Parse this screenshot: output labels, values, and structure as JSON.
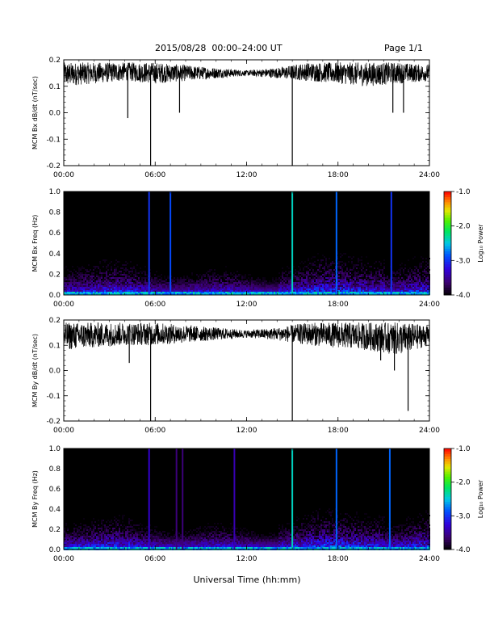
{
  "header": {
    "title": "2015/08/28  00:00–24:00 UT",
    "page": "Page 1/1"
  },
  "footer": {
    "xlabel": "Universal Time (hh:mm)"
  },
  "colorbar": {
    "label": "Log₁₀ Power",
    "ticks": [
      "-1.0",
      "-2.0",
      "-3.0",
      "-4.0"
    ],
    "range": [
      -4.0,
      -1.0
    ]
  },
  "chart_data": [
    {
      "type": "line",
      "ylabel": "MCM Bx dB/dt (nT/sec)",
      "ylim": [
        -0.2,
        0.2
      ],
      "yticks": [
        "0.2",
        "0.1",
        "0.0",
        "-0.1",
        "-0.2"
      ],
      "xticks": [
        "00:00",
        "06:00",
        "12:00",
        "18:00",
        "24:00"
      ],
      "xlim_hours": [
        0,
        24
      ],
      "series": [
        {
          "envelope_hours": [
            0,
            2,
            4,
            6,
            8,
            10,
            12,
            14,
            16,
            18,
            20,
            22,
            24
          ],
          "upper": [
            0.19,
            0.19,
            0.19,
            0.19,
            0.18,
            0.17,
            0.16,
            0.17,
            0.19,
            0.19,
            0.19,
            0.19,
            0.18
          ],
          "lower": [
            0.1,
            0.11,
            0.12,
            0.11,
            0.12,
            0.13,
            0.14,
            0.13,
            0.12,
            0.11,
            0.1,
            0.11,
            0.12
          ],
          "spikes": [
            {
              "hour": 5.7,
              "value": -0.2
            },
            {
              "hour": 4.2,
              "value": -0.02
            },
            {
              "hour": 7.6,
              "value": 0.0
            },
            {
              "hour": 15.0,
              "value": -0.2
            },
            {
              "hour": 21.6,
              "value": 0.0
            },
            {
              "hour": 22.3,
              "value": 0.0
            }
          ]
        }
      ]
    },
    {
      "type": "heatmap",
      "ylabel": "MCM Bx Freq (Hz)",
      "ylim": [
        0.0,
        1.0
      ],
      "yticks": [
        "1.0",
        "0.8",
        "0.6",
        "0.4",
        "0.2",
        "0.0"
      ],
      "xticks": [
        "00:00",
        "06:00",
        "12:00",
        "18:00",
        "24:00"
      ],
      "xlim_hours": [
        0,
        24
      ],
      "zlim": [
        -4.0,
        -1.0
      ],
      "vertical_lines": [
        {
          "hour": 5.6,
          "log_power": -3.0
        },
        {
          "hour": 7.0,
          "log_power": -2.9
        },
        {
          "hour": 15.0,
          "log_power": -2.4
        },
        {
          "hour": 17.9,
          "log_power": -2.8
        },
        {
          "hour": 21.5,
          "log_power": -3.0
        }
      ]
    },
    {
      "type": "line",
      "ylabel": "MCM By dB/dt (nT/sec)",
      "ylim": [
        -0.2,
        0.2
      ],
      "yticks": [
        "0.2",
        "0.1",
        "0.0",
        "-0.1",
        "-0.2"
      ],
      "xticks": [
        "00:00",
        "06:00",
        "12:00",
        "18:00",
        "24:00"
      ],
      "xlim_hours": [
        0,
        24
      ],
      "series": [
        {
          "envelope_hours": [
            0,
            2,
            4,
            6,
            8,
            10,
            12,
            14,
            16,
            18,
            20,
            22,
            24
          ],
          "upper": [
            0.19,
            0.19,
            0.19,
            0.19,
            0.18,
            0.17,
            0.16,
            0.17,
            0.19,
            0.19,
            0.19,
            0.19,
            0.18
          ],
          "lower": [
            0.08,
            0.09,
            0.1,
            0.1,
            0.11,
            0.12,
            0.13,
            0.12,
            0.1,
            0.09,
            0.08,
            0.06,
            0.1
          ],
          "spikes": [
            {
              "hour": 5.7,
              "value": -0.2
            },
            {
              "hour": 4.3,
              "value": 0.03
            },
            {
              "hour": 15.0,
              "value": -0.2
            },
            {
              "hour": 21.7,
              "value": 0.0
            },
            {
              "hour": 22.6,
              "value": -0.16
            },
            {
              "hour": 20.8,
              "value": 0.04
            }
          ]
        }
      ]
    },
    {
      "type": "heatmap",
      "ylabel": "MCM By Freq (Hz)",
      "ylim": [
        0.0,
        1.0
      ],
      "yticks": [
        "1.0",
        "0.8",
        "0.6",
        "0.4",
        "0.2",
        "0.0"
      ],
      "xticks": [
        "00:00",
        "06:00",
        "12:00",
        "18:00",
        "24:00"
      ],
      "xlim_hours": [
        0,
        24
      ],
      "zlim": [
        -4.0,
        -1.0
      ],
      "vertical_lines": [
        {
          "hour": 5.6,
          "log_power": -3.3
        },
        {
          "hour": 7.4,
          "log_power": -3.6
        },
        {
          "hour": 7.8,
          "log_power": -3.6
        },
        {
          "hour": 11.2,
          "log_power": -3.4
        },
        {
          "hour": 15.0,
          "log_power": -2.4
        },
        {
          "hour": 17.9,
          "log_power": -2.8
        },
        {
          "hour": 21.4,
          "log_power": -2.8
        }
      ]
    }
  ]
}
